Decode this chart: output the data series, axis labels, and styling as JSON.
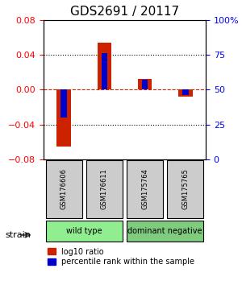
{
  "title": "GDS2691 / 20117",
  "samples": [
    "GSM176606",
    "GSM176611",
    "GSM175764",
    "GSM175765"
  ],
  "log10_ratio": [
    -0.065,
    0.054,
    0.012,
    -0.008
  ],
  "percentile_rank": [
    30,
    76,
    57,
    46
  ],
  "ylim_left": [
    -0.08,
    0.08
  ],
  "ylim_right": [
    0,
    100
  ],
  "yticks_left": [
    -0.08,
    -0.04,
    0,
    0.04,
    0.08
  ],
  "yticks_right": [
    0,
    25,
    50,
    75,
    100
  ],
  "ytick_labels_right": [
    "0",
    "25",
    "50",
    "75",
    "100%"
  ],
  "groups": [
    {
      "label": "wild type",
      "samples": [
        0,
        1
      ],
      "color": "#90EE90"
    },
    {
      "label": "dominant negative",
      "samples": [
        2,
        3
      ],
      "color": "#7FCC7F"
    }
  ],
  "bar_color_red": "#CC2200",
  "bar_color_blue": "#0000CC",
  "legend_red_label": "log10 ratio",
  "legend_blue_label": "percentile rank within the sample",
  "strain_label": "strain",
  "zero_line_color": "#CC2200",
  "grid_color": "black"
}
